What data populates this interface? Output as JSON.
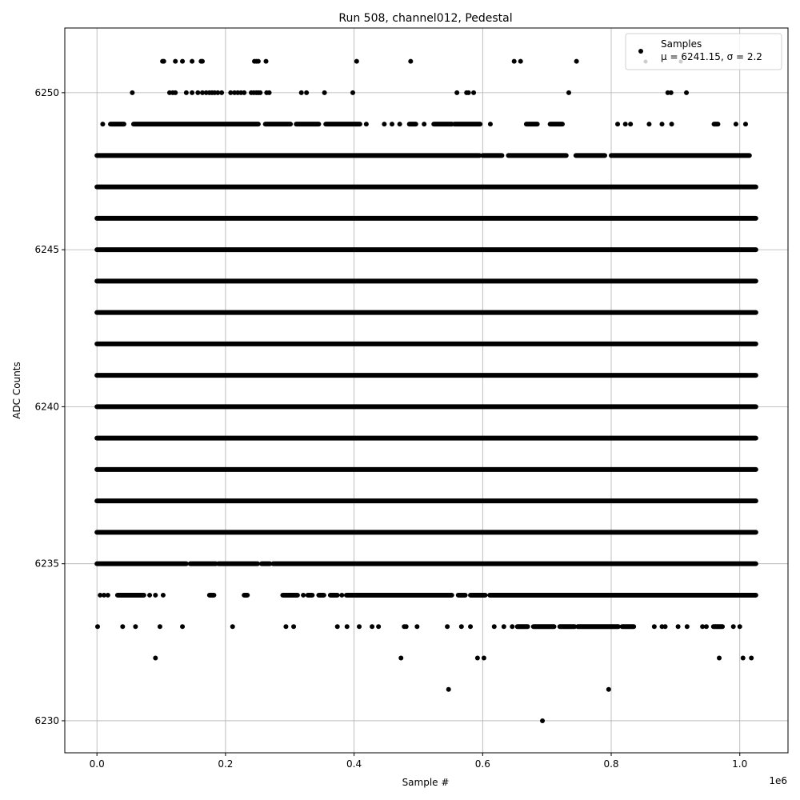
{
  "chart_data": {
    "type": "scatter",
    "title": "Run 508, channel012, Pedestal",
    "xlabel": "Sample #",
    "ylabel": "ADC Counts",
    "x_offset_label": "1e6",
    "xlim": [
      -0.05,
      1.075
    ],
    "ylim": [
      6228.98,
      6252.06
    ],
    "grid": true,
    "legend_placement": "top-right",
    "xticks": [
      0.0,
      0.2,
      0.4,
      0.6,
      0.8,
      1.0
    ],
    "xtick_labels": [
      "0.0",
      "0.2",
      "0.4",
      "0.6",
      "0.8",
      "1.0"
    ],
    "yticks": [
      6230,
      6235,
      6240,
      6245,
      6250
    ],
    "ytick_labels": [
      "6230",
      "6235",
      "6240",
      "6245",
      "6250"
    ],
    "colors": {
      "samples": "#000000",
      "stats_marker": "#cccccc",
      "grid": "#b0b0b0"
    },
    "legend": [
      {
        "label": "Samples",
        "color": "#000000"
      },
      {
        "label": "μ = 6241.15, σ = 2.2",
        "color": "#cccccc"
      }
    ],
    "series": [
      {
        "name": "Samples",
        "rows": [
          {
            "y": 6251,
            "segments": [],
            "points": [
              0.102,
              0.104,
              0.122,
              0.133,
              0.148,
              0.162,
              0.164,
              0.245,
              0.248,
              0.251,
              0.263,
              0.404,
              0.488,
              0.649,
              0.659,
              0.746
            ]
          },
          {
            "y": 6250,
            "segments": [],
            "points": [
              0.055,
              0.113,
              0.118,
              0.122,
              0.139,
              0.148,
              0.157,
              0.164,
              0.17,
              0.175,
              0.179,
              0.183,
              0.188,
              0.194,
              0.208,
              0.214,
              0.219,
              0.224,
              0.229,
              0.24,
              0.244,
              0.248,
              0.251,
              0.254,
              0.264,
              0.268,
              0.318,
              0.326,
              0.354,
              0.398,
              0.56,
              0.575,
              0.578,
              0.586,
              0.734,
              0.888,
              0.893,
              0.917
            ]
          },
          {
            "y": 6249,
            "segments": [
              [
                0.021,
                0.042
              ],
              [
                0.057,
                0.251
              ],
              [
                0.262,
                0.301
              ],
              [
                0.31,
                0.345
              ],
              [
                0.356,
                0.409
              ],
              [
                0.486,
                0.496
              ],
              [
                0.524,
                0.552
              ],
              [
                0.556,
                0.596
              ],
              [
                0.668,
                0.685
              ],
              [
                0.705,
                0.724
              ],
              [
                0.96,
                0.966
              ]
            ],
            "points": [
              0.009,
              0.419,
              0.447,
              0.459,
              0.471,
              0.509,
              0.612,
              0.81,
              0.822,
              0.83,
              0.859,
              0.879,
              0.894,
              0.994,
              1.009
            ]
          },
          {
            "y": 6248,
            "segments": [
              [
                0.0,
                0.595
              ],
              [
                0.6,
                0.63
              ],
              [
                0.64,
                0.73
              ],
              [
                0.745,
                0.79
              ],
              [
                0.8,
                1.015
              ]
            ],
            "points": []
          },
          {
            "y": 6247,
            "segments": [
              [
                0.0,
                1.025
              ]
            ],
            "points": []
          },
          {
            "y": 6246,
            "segments": [
              [
                0.0,
                1.025
              ]
            ],
            "points": []
          },
          {
            "y": 6245,
            "segments": [
              [
                0.0,
                1.025
              ]
            ],
            "points": []
          },
          {
            "y": 6244,
            "segments": [
              [
                0.0,
                1.025
              ]
            ],
            "points": []
          },
          {
            "y": 6243,
            "segments": [
              [
                0.0,
                1.025
              ]
            ],
            "points": []
          },
          {
            "y": 6242,
            "segments": [
              [
                0.0,
                1.025
              ]
            ],
            "points": []
          },
          {
            "y": 6241,
            "segments": [
              [
                0.0,
                1.025
              ]
            ],
            "points": []
          },
          {
            "y": 6240,
            "segments": [
              [
                0.0,
                1.025
              ]
            ],
            "points": []
          },
          {
            "y": 6239,
            "segments": [
              [
                0.0,
                1.025
              ]
            ],
            "points": []
          },
          {
            "y": 6238,
            "segments": [
              [
                0.0,
                1.025
              ]
            ],
            "points": []
          },
          {
            "y": 6237,
            "segments": [
              [
                0.0,
                1.025
              ]
            ],
            "points": []
          },
          {
            "y": 6236,
            "segments": [
              [
                0.0,
                1.025
              ]
            ],
            "points": []
          },
          {
            "y": 6235,
            "segments": [
              [
                0.0,
                0.139
              ],
              [
                0.145,
                0.185
              ],
              [
                0.189,
                0.25
              ],
              [
                0.256,
                0.269
              ],
              [
                0.274,
                1.025
              ]
            ],
            "points": []
          },
          {
            "y": 6234,
            "segments": [
              [
                0.032,
                0.073
              ],
              [
                0.175,
                0.182
              ],
              [
                0.229,
                0.234
              ],
              [
                0.289,
                0.312
              ],
              [
                0.328,
                0.335
              ],
              [
                0.345,
                0.353
              ],
              [
                0.363,
                0.374
              ],
              [
                0.388,
                0.552
              ],
              [
                0.562,
                0.573
              ],
              [
                0.581,
                0.604
              ],
              [
                0.611,
                1.025
              ]
            ],
            "points": [
              0.005,
              0.011,
              0.017,
              0.082,
              0.091,
              0.103,
              0.321,
              0.381
            ]
          },
          {
            "y": 6233,
            "segments": [
              [
                0.654,
                0.67
              ],
              [
                0.679,
                0.711
              ],
              [
                0.72,
                0.743
              ],
              [
                0.748,
                0.811
              ],
              [
                0.817,
                0.835
              ],
              [
                0.959,
                0.973
              ]
            ],
            "points": [
              0.001,
              0.04,
              0.06,
              0.098,
              0.133,
              0.211,
              0.294,
              0.306,
              0.374,
              0.389,
              0.408,
              0.428,
              0.438,
              0.478,
              0.481,
              0.498,
              0.545,
              0.567,
              0.581,
              0.618,
              0.633,
              0.646,
              0.867,
              0.879,
              0.884,
              0.904,
              0.918,
              0.942,
              0.948,
              0.99,
              1.0
            ]
          },
          {
            "y": 6232,
            "segments": [],
            "points": [
              0.091,
              0.473,
              0.592,
              0.602,
              0.968,
              1.005,
              1.018
            ]
          },
          {
            "y": 6231,
            "segments": [],
            "points": [
              0.547,
              0.796
            ]
          },
          {
            "y": 6230,
            "segments": [],
            "points": [
              0.693
            ]
          }
        ]
      }
    ]
  }
}
